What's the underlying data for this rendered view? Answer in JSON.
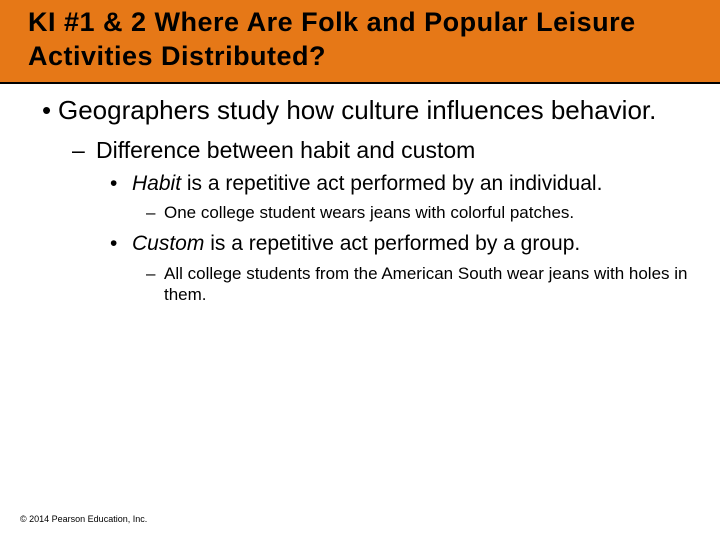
{
  "colors": {
    "title_bg": "#e67817",
    "text": "#000000",
    "page_bg": "#ffffff"
  },
  "typography": {
    "title_fontsize": 27,
    "l1_fontsize": 26,
    "l2_fontsize": 23,
    "l3_fontsize": 21,
    "l4_fontsize": 17,
    "footer_fontsize": 9,
    "font_family": "Arial"
  },
  "title": "KI #1 & 2 Where Are Folk and Popular Leisure Activities Distributed?",
  "l1_text": "Geographers study how culture influences behavior.",
  "l2_text": "Difference between habit and custom",
  "l3a_habit": "Habit",
  "l3a_rest": " is a repetitive act performed by an individual.",
  "l4a_text": "One college student wears jeans with colorful patches.",
  "l3b_custom": "Custom",
  "l3b_rest": " is a repetitive act performed by a group.",
  "l4b_text": "All college students from the American South wear jeans with holes in them.",
  "footer": "© 2014 Pearson Education, Inc.",
  "markers": {
    "l1": "•",
    "l2": "–",
    "l3": "•",
    "l4": "–"
  }
}
